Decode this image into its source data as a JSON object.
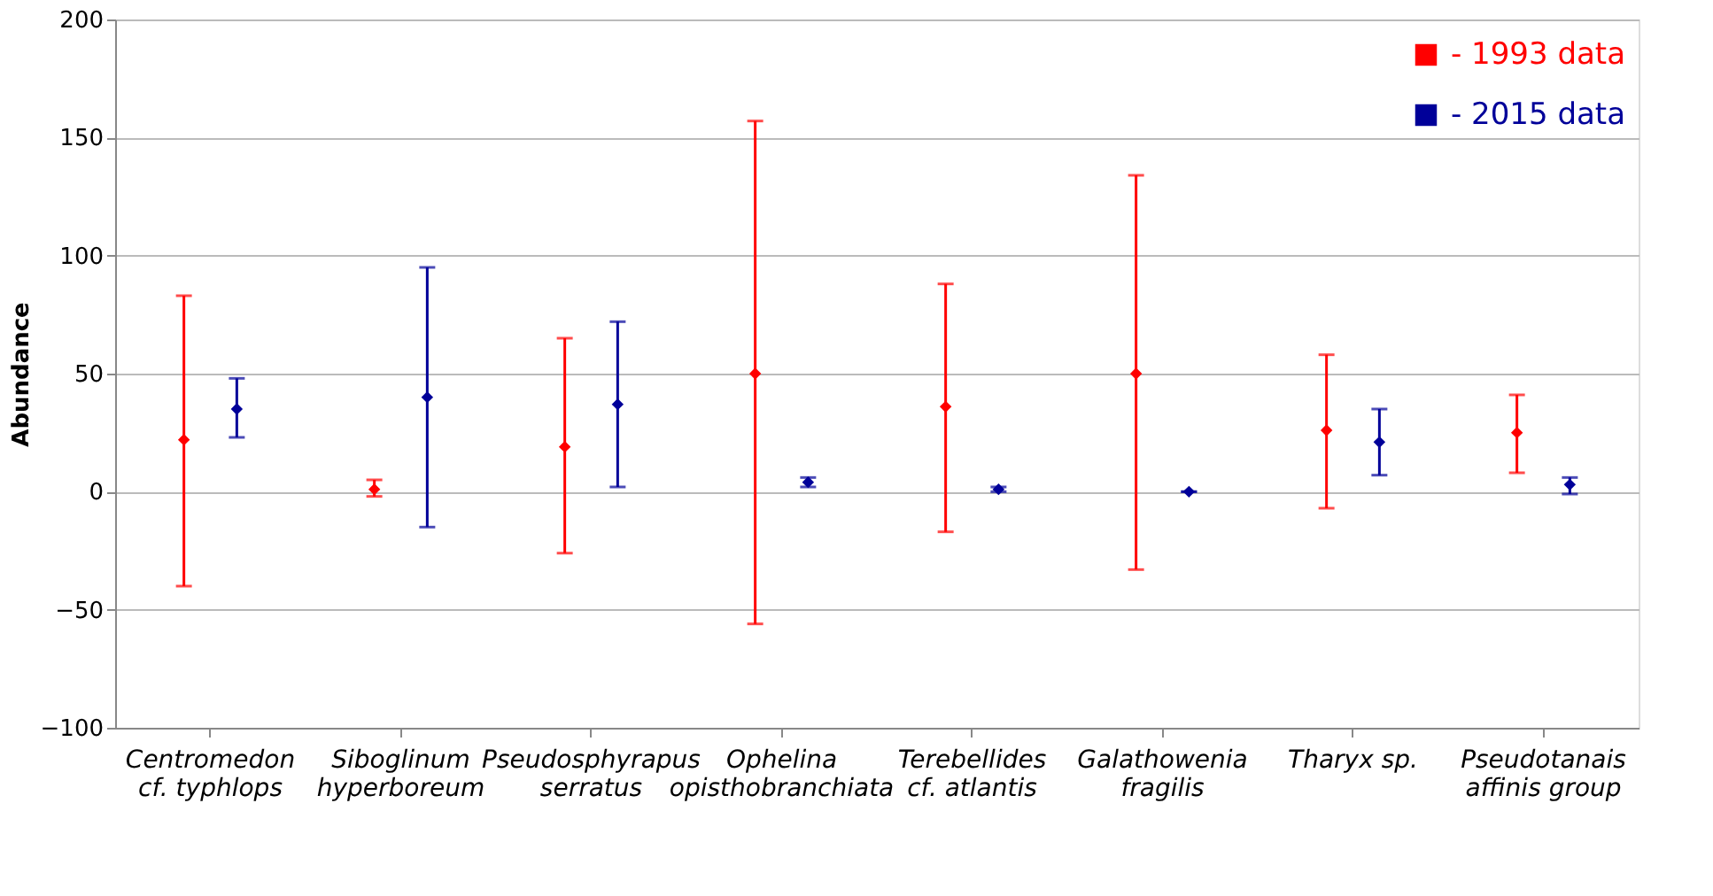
{
  "chart_data": {
    "type": "scatter",
    "ylabel": "Abundance",
    "categories": [
      "Centromedon\ncf. typhlops",
      "Siboglinum\nhyperboreum",
      "Pseudosphyrapus\nserratus",
      "Ophelina\nopisthobranchiata",
      "Terebellides\ncf. atlantis",
      "Galathowenia\nfragilis",
      "Tharyx sp.",
      "Pseudotanais\naffinis group"
    ],
    "series": [
      {
        "name": "- 1993 data",
        "color": "#ff0000",
        "values": [
          22,
          1,
          19,
          50,
          36,
          50,
          26,
          25
        ],
        "errors": [
          [
            -40,
            83
          ],
          [
            -2,
            5
          ],
          [
            -26,
            65
          ],
          [
            -56,
            157
          ],
          [
            -17,
            88
          ],
          [
            -33,
            134
          ],
          [
            -7,
            58
          ],
          [
            8,
            41
          ]
        ]
      },
      {
        "name": "- 2015 data",
        "color": "#000099",
        "values": [
          35,
          40,
          37,
          4,
          1,
          0,
          21,
          3
        ],
        "errors": [
          [
            23,
            48
          ],
          [
            -15,
            95
          ],
          [
            2,
            72
          ],
          [
            2,
            6
          ],
          [
            0,
            2
          ],
          [
            0,
            0
          ],
          [
            7,
            35
          ],
          [
            -1,
            6
          ]
        ]
      }
    ],
    "ylim": [
      -100,
      200
    ],
    "yticks": [
      -100,
      -50,
      0,
      50,
      100,
      150,
      200
    ],
    "grid": "y",
    "legend": "top right",
    "marker": "diamond"
  }
}
